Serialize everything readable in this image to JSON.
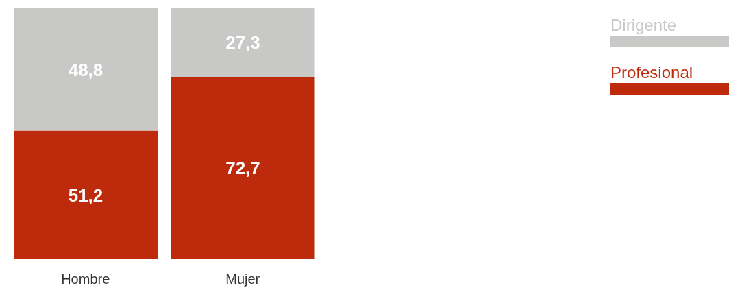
{
  "chart_data": {
    "type": "bar",
    "stacked": true,
    "categories": [
      "Hombre",
      "Mujer"
    ],
    "series": [
      {
        "name": "Profesional",
        "color": "#bd2b0c",
        "values": [
          51.2,
          72.7
        ],
        "value_labels": [
          "51,2",
          "72,7"
        ]
      },
      {
        "name": "Dirigente",
        "color": "#c8c8c6",
        "values": [
          48.8,
          27.3
        ],
        "value_labels": [
          "48,8",
          "27,3"
        ]
      }
    ],
    "legend": "top right",
    "grid": false
  }
}
